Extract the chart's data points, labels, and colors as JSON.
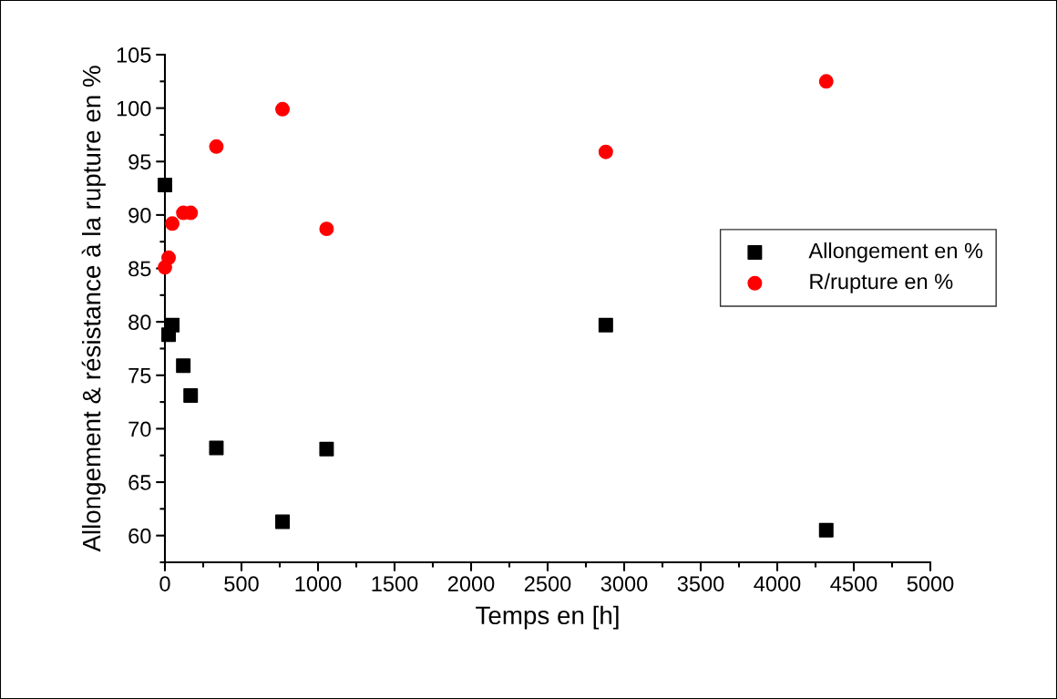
{
  "chart_data": {
    "type": "scatter",
    "xlabel": "Temps en [h]",
    "ylabel": "Allongement & résistance à la rupture en %",
    "xlim": [
      0,
      5000
    ],
    "xticks": [
      0,
      500,
      1000,
      1500,
      2000,
      2500,
      3000,
      3500,
      4000,
      4500,
      5000
    ],
    "ylim": [
      57.5,
      105
    ],
    "yticks": [
      60,
      65,
      70,
      75,
      80,
      85,
      90,
      95,
      100,
      105
    ],
    "x": [
      0,
      24,
      48,
      120,
      168,
      336,
      768,
      1056,
      2880,
      4320
    ],
    "grid": false,
    "legend": "right",
    "series": [
      {
        "name": "Allongement en %",
        "color": "#000000",
        "marker": "square",
        "values": [
          92.8,
          78.8,
          79.7,
          75.9,
          73.1,
          68.2,
          61.3,
          68.1,
          79.7,
          60.5
        ]
      },
      {
        "name": "R/rupture en %",
        "color": "#ff0000",
        "marker": "circle",
        "values": [
          85.1,
          86.0,
          89.2,
          90.2,
          90.2,
          96.4,
          99.9,
          88.7,
          95.9,
          102.5
        ]
      }
    ]
  }
}
